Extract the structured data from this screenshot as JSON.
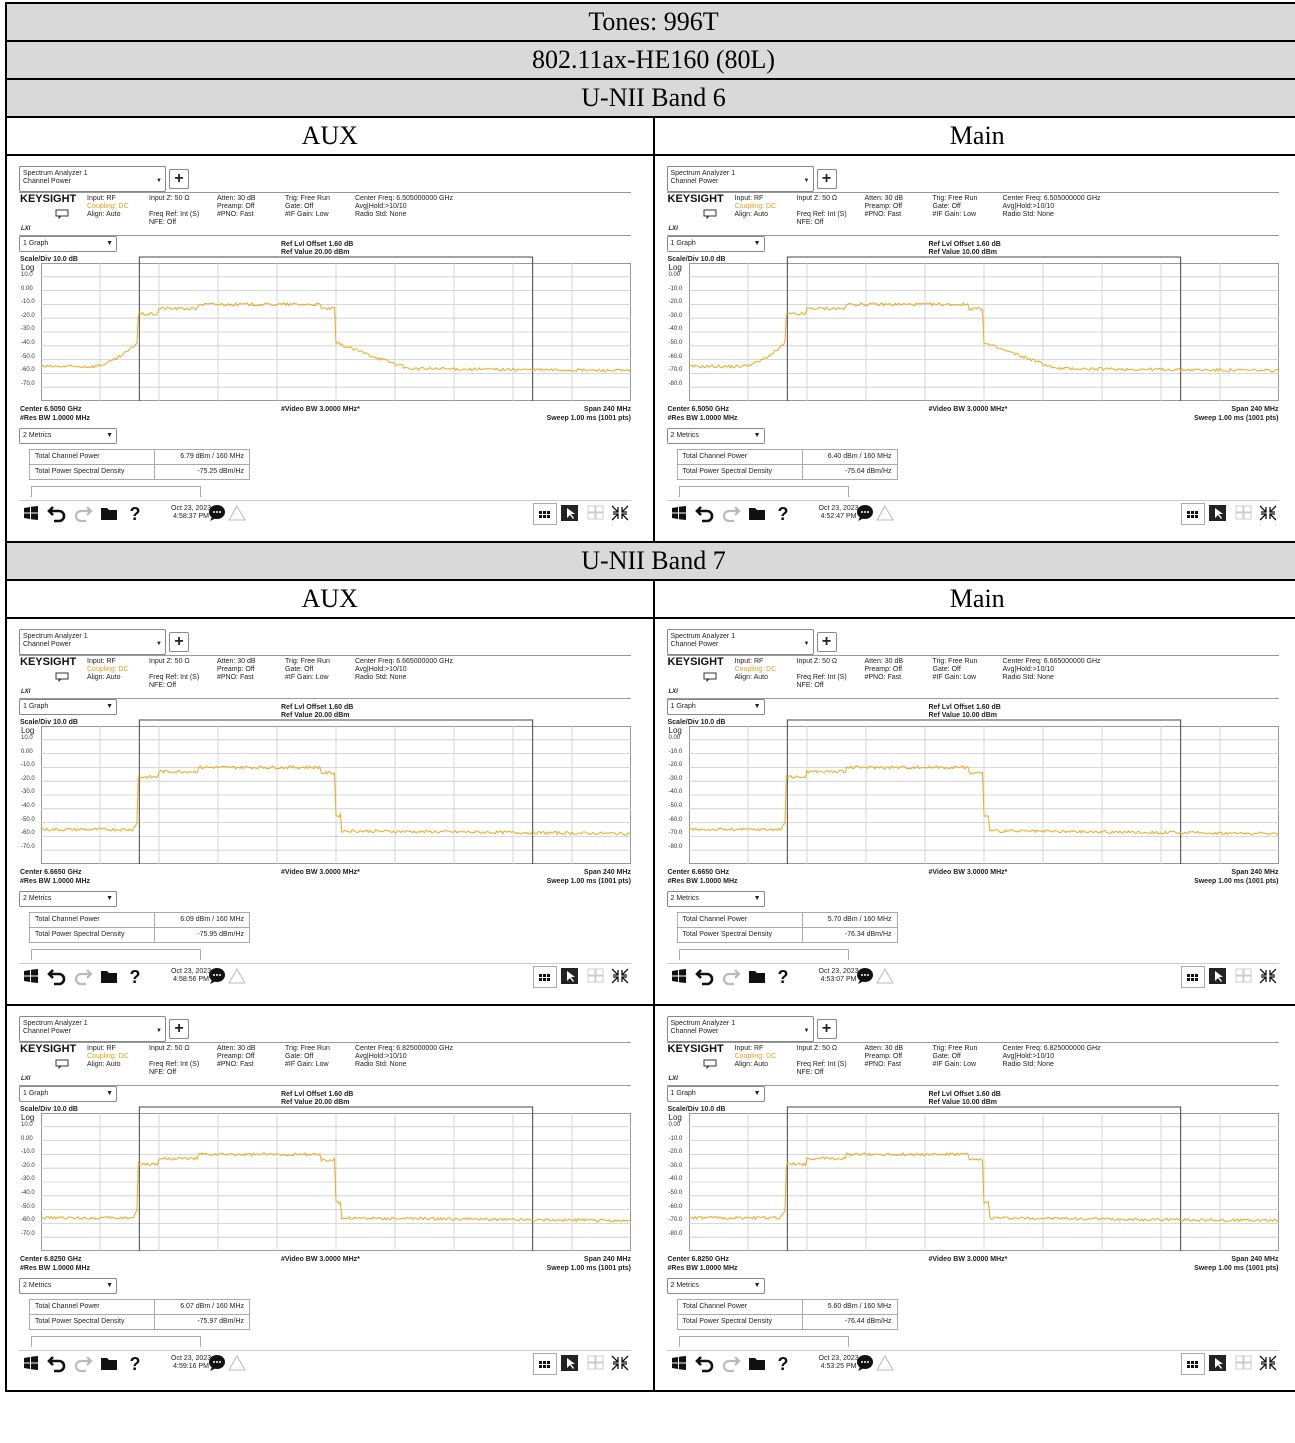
{
  "title_rows": [
    "Tones: 996T",
    "802.11ax-HE160 (80L)"
  ],
  "sections": [
    {
      "band": "U-NII Band 6",
      "columns": [
        "AUX",
        "Main"
      ],
      "rows": [
        [
          {
            "center_freq_full": "Center Freq: 6.505000000 GHz",
            "center": "Center 6.5050 GHz",
            "ref_value": "Ref Value 20.00 dBm",
            "y_labels": [
              "10.0",
              "0.00",
              "-10.0",
              "-20.0",
              "-30.0",
              "-40.0",
              "-50.0",
              "-60.0",
              "-70.0"
            ],
            "total_channel_power": "6.79 dBm / 160 MHz",
            "total_psd": "-75.25 dBm/Hz",
            "date": "Oct 23, 2023",
            "time": "4:58:37 PM",
            "trace": {
              "y_top_levels": [
                -17,
                -13,
                -10,
                -13
              ],
              "floor": -58,
              "edge_left": -55,
              "slope": "gradual"
            }
          },
          {
            "center_freq_full": "Center Freq: 6.505000000 GHz",
            "center": "Center 6.5050 GHz",
            "ref_value": "Ref Value 10.00 dBm",
            "y_labels": [
              "0.00",
              "-10.0",
              "-20.0",
              "-30.0",
              "-40.0",
              "-50.0",
              "-60.0",
              "-70.0",
              "-80.0"
            ],
            "total_channel_power": "6.40 dBm / 160 MHz",
            "total_psd": "-75.64 dBm/Hz",
            "date": "Oct 23, 2023",
            "time": "4:52:47 PM",
            "trace": {
              "y_top_levels": [
                -17,
                -13,
                -10,
                -13
              ],
              "floor": -58,
              "edge_left": -55,
              "slope": "gradual"
            }
          }
        ]
      ]
    },
    {
      "band": "U-NII Band 7",
      "columns": [
        "AUX",
        "Main"
      ],
      "rows": [
        [
          {
            "center_freq_full": "Center Freq: 6.665000000 GHz",
            "center": "Center 6.6650 GHz",
            "ref_value": "Ref Value 20.00 dBm",
            "y_labels": [
              "10.0",
              "0.00",
              "-10.0",
              "-20.0",
              "-30.0",
              "-40.0",
              "-50.0",
              "-60.0",
              "-70.0"
            ],
            "total_channel_power": "6.09 dBm / 160 MHz",
            "total_psd": "-75.95 dBm/Hz",
            "date": "Oct 23, 2023",
            "time": "4:58:56 PM",
            "trace": {
              "y_top_levels": [
                -17,
                -13,
                -10,
                -14
              ],
              "floor": -58,
              "edge_left": -55,
              "slope": "sharp"
            }
          },
          {
            "center_freq_full": "Center Freq: 6.665000000 GHz",
            "center": "Center 6.6650 GHz",
            "ref_value": "Ref Value 10.00 dBm",
            "y_labels": [
              "0.00",
              "-10.0",
              "-20.0",
              "-30.0",
              "-40.0",
              "-50.0",
              "-60.0",
              "-70.0",
              "-80.0"
            ],
            "total_channel_power": "5.70 dBm / 160 MHz",
            "total_psd": "-76.34 dBm/Hz",
            "date": "Oct 23, 2023",
            "time": "4:53:07 PM",
            "trace": {
              "y_top_levels": [
                -17,
                -13,
                -10,
                -14
              ],
              "floor": -58,
              "edge_left": -55,
              "slope": "sharp"
            }
          }
        ],
        [
          {
            "center_freq_full": "Center Freq: 6.825000000 GHz",
            "center": "Center 6.8250 GHz",
            "ref_value": "Ref Value 20.00 dBm",
            "y_labels": [
              "10.0",
              "0.00",
              "-10.0",
              "-20.0",
              "-30.0",
              "-40.0",
              "-50.0",
              "-60.0",
              "-70.0"
            ],
            "total_channel_power": "6.07 dBm / 160 MHz",
            "total_psd": "-75.97 dBm/Hz",
            "date": "Oct 23, 2023",
            "time": "4:59:16 PM",
            "trace": {
              "y_top_levels": [
                -17,
                -13,
                -10,
                -14
              ],
              "floor": -58,
              "edge_left": -56,
              "slope": "sharp"
            }
          },
          {
            "center_freq_full": "Center Freq: 6.825000000 GHz",
            "center": "Center 6.8250 GHz",
            "ref_value": "Ref Value 10.00 dBm",
            "y_labels": [
              "0.00",
              "-10.0",
              "-20.0",
              "-30.0",
              "-40.0",
              "-50.0",
              "-60.0",
              "-70.0",
              "-80.0"
            ],
            "total_channel_power": "5.60 dBm / 160 MHz",
            "total_psd": "-76.44 dBm/Hz",
            "date": "Oct 23, 2023",
            "time": "4:53:25 PM",
            "trace": {
              "y_top_levels": [
                -17,
                -13,
                -10,
                -14
              ],
              "floor": -58,
              "edge_left": -56,
              "slope": "sharp"
            }
          }
        ]
      ]
    }
  ],
  "common": {
    "tab_line1": "Spectrum Analyzer 1",
    "tab_line2": "Channel Power",
    "logo": "KEYSIGHT",
    "lxi": "LXI",
    "info": {
      "c1a": "Input: RF",
      "c1b": "Coupling: DC",
      "c1c": "Align: Auto",
      "c2a": "Input Z: 50 Ω",
      "c2b": "Freq Ref: Int (S)",
      "c2c": "NFE: Off",
      "c3a": "Atten: 30 dB",
      "c3b": "Preamp: Off",
      "c3c": "#PNO: Fast",
      "c4a": "Trig: Free Run",
      "c4b": "Gate: Off",
      "c4c": "#IF Gain: Low",
      "c5b": "Avg|Hold:>10/10",
      "c5c": "Radio Std: None"
    },
    "graph_select": "1 Graph",
    "ref_offset": "Ref Lvl Offset 1.60 dB",
    "scale": "Scale/Div 10.0 dB",
    "log": "Log",
    "vbw": "#Video BW 3.0000 MHz*",
    "span": "Span 240 MHz",
    "rbw": "#Res BW 1.0000 MHz",
    "sweep": "Sweep 1.00 ms (1001 pts)",
    "metrics_select": "2 Metrics",
    "metric_k1": "Total Channel Power",
    "metric_k2": "Total Power Spectral Density",
    "trace_color": "#f0a820"
  }
}
